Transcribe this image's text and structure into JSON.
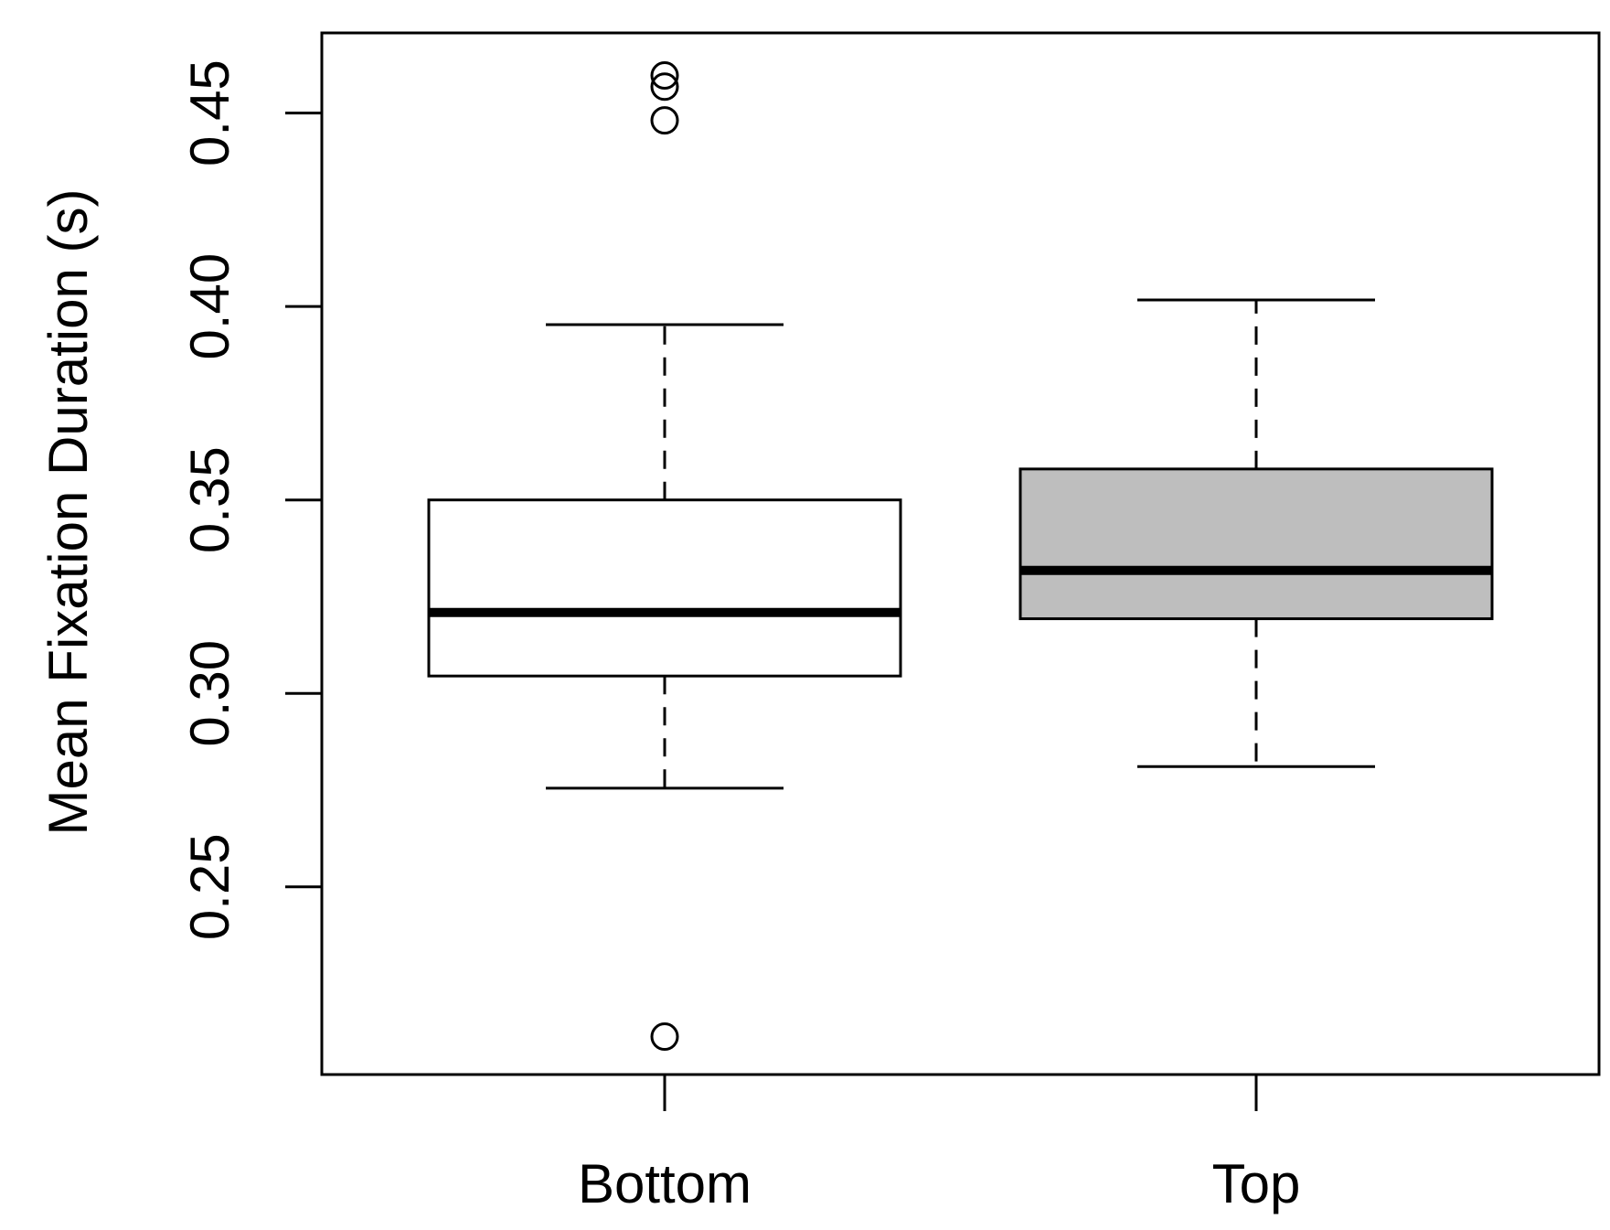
{
  "chart_data": {
    "type": "box",
    "title": "",
    "xlabel": "",
    "ylabel": "Mean Fixation Duration (s)",
    "ylim": [
      0.2015,
      0.4707
    ],
    "yticks": [
      0.25,
      0.3,
      0.35,
      0.4,
      0.45
    ],
    "ytick_labels": [
      "0.25",
      "0.30",
      "0.35",
      "0.40",
      "0.45"
    ],
    "categories": [
      "Bottom",
      "Top"
    ],
    "boxes": [
      {
        "category": "Bottom",
        "whisker_low": 0.2755,
        "q1": 0.3045,
        "median": 0.3209,
        "q3": 0.35,
        "whisker_high": 0.3953,
        "outliers": [
          0.2113,
          0.4481,
          0.4568,
          0.4597
        ],
        "fill": "#ffffff"
      },
      {
        "category": "Top",
        "whisker_low": 0.2811,
        "q1": 0.3193,
        "median": 0.3318,
        "q3": 0.358,
        "whisker_high": 0.4017,
        "outliers": [],
        "fill": "#bebebe"
      }
    ],
    "grid": false,
    "legend": "none"
  }
}
